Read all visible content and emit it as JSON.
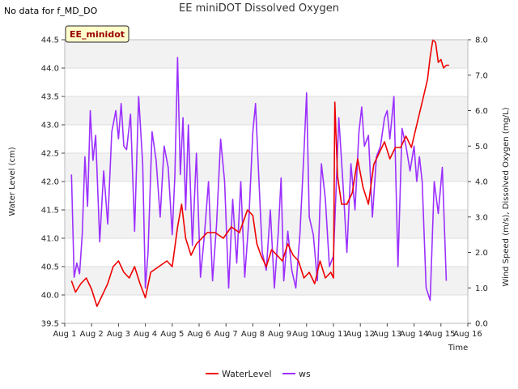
{
  "no_data_text": "No data for f_MD_DO",
  "chart_data": {
    "type": "line",
    "title": "EE miniDOT Dissolved Oxygen",
    "badge": "EE_minidot",
    "xlabel": "Time",
    "ylabel_left": "Water Level (cm)",
    "ylabel_right": "Wind Speed (m/s), Dissolved Oxygen (mg/L)",
    "x_ticks": [
      "Aug 1",
      "Aug 2",
      "Aug 3",
      "Aug 4",
      "Aug 5",
      "Aug 6",
      "Aug 7",
      "Aug 8",
      "Aug 9",
      "Aug 10",
      "Aug 11",
      "Aug 12",
      "Aug 13",
      "Aug 14",
      "Aug 15",
      "Aug 16"
    ],
    "xlim_days": [
      1,
      16
    ],
    "ylim_left": [
      39.5,
      44.5
    ],
    "y_ticks_left": [
      "39.5",
      "40.0",
      "40.5",
      "41.0",
      "41.5",
      "42.0",
      "42.5",
      "43.0",
      "43.5",
      "44.0",
      "44.5"
    ],
    "ylim_right": [
      0.0,
      8.0
    ],
    "y_ticks_right": [
      "0.0",
      "1.0",
      "2.0",
      "3.0",
      "4.0",
      "5.0",
      "6.0",
      "7.0",
      "8.0"
    ],
    "grid": true,
    "legend_position": "bottom-center",
    "colors": {
      "WaterLevel": "#ee0000",
      "ws": "#9b30ff"
    },
    "series": [
      {
        "name": "WaterLevel",
        "axis": "left",
        "x": [
          1.25,
          1.4,
          1.6,
          1.8,
          2.0,
          2.2,
          2.4,
          2.6,
          2.8,
          3.0,
          3.2,
          3.4,
          3.6,
          3.8,
          4.0,
          4.2,
          4.5,
          4.8,
          5.0,
          5.2,
          5.35,
          5.5,
          5.7,
          5.9,
          6.1,
          6.3,
          6.6,
          6.9,
          7.2,
          7.5,
          7.8,
          8.0,
          8.15,
          8.3,
          8.5,
          8.7,
          8.9,
          9.1,
          9.3,
          9.5,
          9.7,
          9.9,
          10.1,
          10.3,
          10.5,
          10.7,
          10.9,
          11.0,
          11.05,
          11.15,
          11.3,
          11.5,
          11.7,
          11.9,
          12.1,
          12.3,
          12.5,
          12.7,
          12.9,
          13.1,
          13.3,
          13.5,
          13.7,
          13.9,
          14.1,
          14.3,
          14.5,
          14.6,
          14.7,
          14.8,
          14.9,
          15.0,
          15.1,
          15.2,
          15.3
        ],
        "y": [
          40.25,
          40.05,
          40.2,
          40.3,
          40.1,
          39.8,
          40.0,
          40.2,
          40.5,
          40.6,
          40.4,
          40.3,
          40.5,
          40.2,
          39.95,
          40.4,
          40.5,
          40.6,
          40.5,
          41.2,
          41.6,
          41.0,
          40.7,
          40.9,
          41.0,
          41.1,
          41.1,
          41.0,
          41.2,
          41.1,
          41.5,
          41.4,
          40.9,
          40.7,
          40.5,
          40.8,
          40.7,
          40.6,
          40.9,
          40.7,
          40.6,
          40.3,
          40.4,
          40.2,
          40.6,
          40.3,
          40.4,
          40.3,
          43.4,
          42.1,
          41.6,
          41.6,
          41.8,
          42.4,
          41.9,
          41.6,
          42.3,
          42.5,
          42.7,
          42.4,
          42.6,
          42.6,
          42.8,
          42.6,
          43.0,
          43.4,
          43.8,
          44.2,
          44.5,
          44.45,
          44.1,
          44.15,
          44.0,
          44.05,
          44.05
        ]
      },
      {
        "name": "ws",
        "axis": "right",
        "x": [
          1.25,
          1.35,
          1.45,
          1.55,
          1.65,
          1.75,
          1.85,
          1.95,
          2.05,
          2.15,
          2.3,
          2.45,
          2.6,
          2.75,
          2.9,
          3.0,
          3.1,
          3.2,
          3.3,
          3.45,
          3.6,
          3.75,
          3.9,
          4.0,
          4.1,
          4.25,
          4.4,
          4.55,
          4.7,
          4.85,
          5.0,
          5.1,
          5.2,
          5.3,
          5.4,
          5.5,
          5.6,
          5.75,
          5.9,
          6.05,
          6.2,
          6.35,
          6.5,
          6.65,
          6.8,
          6.95,
          7.1,
          7.25,
          7.4,
          7.55,
          7.7,
          7.85,
          8.0,
          8.1,
          8.2,
          8.35,
          8.5,
          8.65,
          8.8,
          8.95,
          9.05,
          9.15,
          9.3,
          9.45,
          9.6,
          9.75,
          9.9,
          10.0,
          10.1,
          10.25,
          10.4,
          10.55,
          10.7,
          10.85,
          11.0,
          11.1,
          11.2,
          11.35,
          11.5,
          11.65,
          11.8,
          11.95,
          12.05,
          12.15,
          12.3,
          12.45,
          12.6,
          12.75,
          12.9,
          13.0,
          13.1,
          13.25,
          13.4,
          13.55,
          13.7,
          13.85,
          14.0,
          14.1,
          14.2,
          14.3,
          14.45,
          14.6,
          14.75,
          14.9,
          15.05,
          15.2
        ],
        "y": [
          4.2,
          1.3,
          1.7,
          1.4,
          2.5,
          4.7,
          3.3,
          6.0,
          4.6,
          5.3,
          2.3,
          4.3,
          2.8,
          5.4,
          6.0,
          5.2,
          6.2,
          5.0,
          4.9,
          5.9,
          2.6,
          6.4,
          4.5,
          1.0,
          2.0,
          5.4,
          4.6,
          3.0,
          5.0,
          4.4,
          2.5,
          4.2,
          7.5,
          4.2,
          5.8,
          3.2,
          5.6,
          2.2,
          4.8,
          1.3,
          2.5,
          4.0,
          1.2,
          2.8,
          5.2,
          4.0,
          1.0,
          3.5,
          1.7,
          4.0,
          1.3,
          2.9,
          5.4,
          6.2,
          4.5,
          2.0,
          1.5,
          3.2,
          1.0,
          2.6,
          4.1,
          1.2,
          2.6,
          1.5,
          1.0,
          2.5,
          4.8,
          6.5,
          3.0,
          2.5,
          1.2,
          4.5,
          3.5,
          1.6,
          1.9,
          3.8,
          5.8,
          4.0,
          2.0,
          4.5,
          3.2,
          5.4,
          6.1,
          5.0,
          5.3,
          3.0,
          4.7,
          5.0,
          5.8,
          6.0,
          5.2,
          6.4,
          1.6,
          5.5,
          5.0,
          4.3,
          5.0,
          4.0,
          4.7,
          4.0,
          1.0,
          0.65,
          4.0,
          3.1,
          4.4,
          1.2
        ]
      }
    ]
  }
}
